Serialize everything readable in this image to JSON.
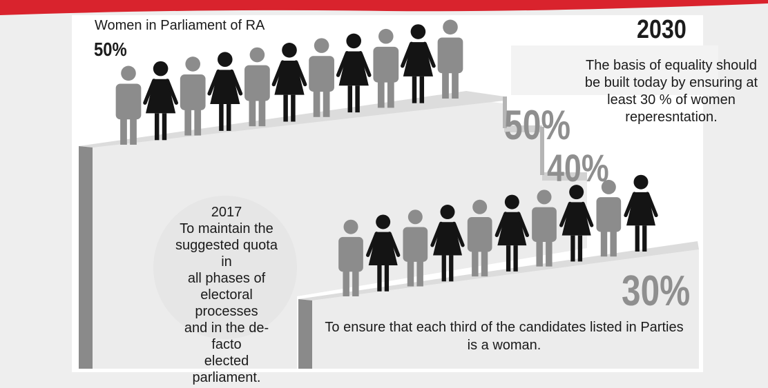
{
  "header": {
    "title": "Women in Parliament of RA",
    "percent": "50%"
  },
  "milestone_2030": {
    "year": "2030",
    "note": "The basis of equality should be built today by ensuring at least 30 % of women reperesntation."
  },
  "milestone_2017": {
    "lines": [
      "2017",
      "To maintain the",
      "suggested quota in",
      "all phases of",
      "electoral processes",
      "and in the de- facto",
      "elected parliament."
    ]
  },
  "bottom_note": "To ensure that each third of the candidates listed in Parties is a woman.",
  "steps": {
    "step_50": "50%",
    "step_40": "40%",
    "step_30": "30%"
  },
  "figures": {
    "upper_row": [
      "man",
      "woman",
      "man",
      "woman",
      "man",
      "woman",
      "man",
      "woman",
      "man",
      "woman",
      "man"
    ],
    "lower_row": [
      "man",
      "woman",
      "man",
      "woman",
      "man",
      "woman",
      "man",
      "woman",
      "man",
      "woman"
    ]
  },
  "colors": {
    "accent_red": "#d9232d",
    "man": "#8c8c8c",
    "woman": "#141414",
    "step_top": "#dcdcdc",
    "step_face": "#ececec",
    "step_side": "#8a8a8a"
  }
}
